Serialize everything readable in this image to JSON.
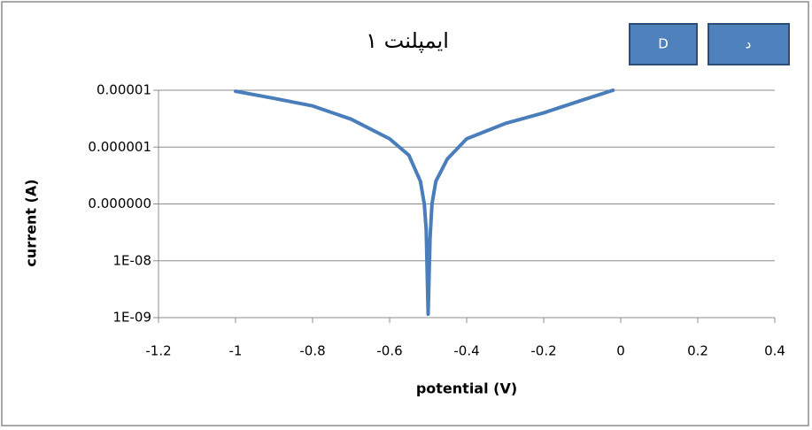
{
  "chart_data": {
    "type": "line",
    "title": "ایمپلنت ۱",
    "buttons": [
      "D",
      "د"
    ],
    "xlabel": "potential (V)",
    "ylabel": "current (A)",
    "x": [
      -1,
      -0.9,
      -0.8,
      -0.7,
      -0.6,
      -0.55,
      -0.52,
      -0.51,
      -0.505,
      -0.5,
      -0.495,
      -0.49,
      -0.48,
      -0.45,
      -0.4,
      -0.3,
      -0.2,
      -0.1,
      -0.02
    ],
    "series": [
      {
        "color": "#4a7ebb",
        "values": [
          9.6e-06,
          7.2e-06,
          5.3e-06,
          3.1e-06,
          1.4e-06,
          7.2e-07,
          2.5e-07,
          1e-07,
          3.5e-08,
          1.15e-09,
          2.5e-08,
          1e-07,
          2.5e-07,
          6.2e-07,
          1.4e-06,
          2.6e-06,
          4e-06,
          6.7e-06,
          1e-05
        ]
      }
    ],
    "xlim": [
      -1.2,
      0.4
    ],
    "xticks": [
      -1.2,
      -1,
      -0.8,
      -0.6,
      -0.4,
      -0.2,
      0,
      0.2,
      0.4
    ],
    "ylim": [
      1e-09,
      1e-05
    ],
    "log_y": true,
    "yticks": [
      {
        "value": 1e-09,
        "label": "1E-09"
      },
      {
        "value": 1e-08,
        "label": "1E-08"
      },
      {
        "value": 1e-07,
        "label": "0.000000"
      },
      {
        "value": 1e-06,
        "label": "0.000001"
      },
      {
        "value": 1e-05,
        "label": "0.00001"
      }
    ],
    "grid": true
  }
}
